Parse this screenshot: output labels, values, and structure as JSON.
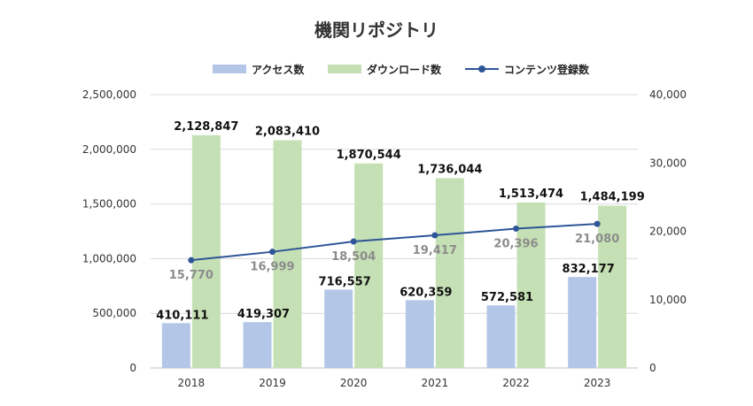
{
  "chart_data": {
    "type": "bar",
    "title": "機関リポジトリ",
    "categories": [
      "2018",
      "2019",
      "2020",
      "2021",
      "2022",
      "2023"
    ],
    "series": [
      {
        "name": "アクセス数",
        "type": "bar",
        "axis": "left",
        "color": "#B4C6E7",
        "values": [
          410111,
          419307,
          716557,
          620359,
          572581,
          832177
        ],
        "labels": [
          "410,111",
          "419,307",
          "716,557",
          "620,359",
          "572,581",
          "832,177"
        ]
      },
      {
        "name": "ダウンロード数",
        "type": "bar",
        "axis": "left",
        "color": "#C5E0B4",
        "values": [
          2128847,
          2083410,
          1870544,
          1736044,
          1513474,
          1484199
        ],
        "labels": [
          "2,128,847",
          "2,083,410",
          "1,870,544",
          "1,736,044",
          "1,513,474",
          "1,484,199"
        ]
      },
      {
        "name": "コンテンツ登録数",
        "type": "line",
        "axis": "right",
        "color": "#2E5597",
        "values": [
          15770,
          16999,
          18504,
          19417,
          20396,
          21080
        ],
        "labels": [
          "15,770",
          "16,999",
          "18,504",
          "19,417",
          "20,396",
          "21,080"
        ]
      }
    ],
    "y_left": {
      "range": [
        0,
        2500000
      ],
      "ticks": [
        "0",
        "500,000",
        "1,000,000",
        "1,500,000",
        "2,000,000",
        "2,500,000"
      ]
    },
    "y_right": {
      "range": [
        0,
        40000
      ],
      "ticks": [
        "0",
        "10,000",
        "20,000",
        "30,000",
        "40,000"
      ]
    },
    "grid": true,
    "legend": "top"
  }
}
